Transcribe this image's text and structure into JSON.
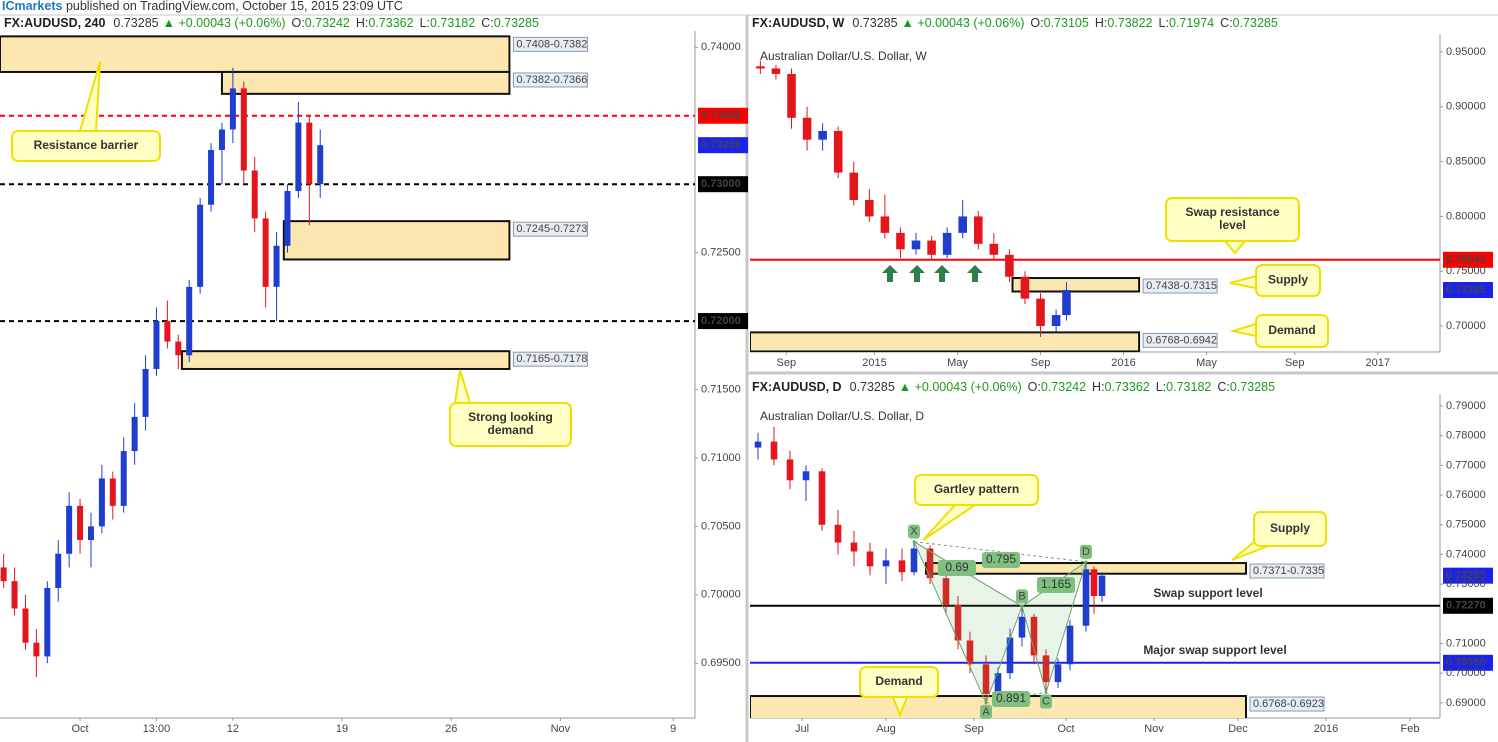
{
  "header": {
    "brand": "ICmarkets",
    "text": "published on TradingView.com, October 15, 2015 23:09 UTC"
  },
  "chart_data": [
    {
      "type": "candlestick",
      "symbol": "FX:AUDUSD, 240",
      "last": "0.73285",
      "change": "▲ +0.00043 (+0.06%)",
      "ohlc": [
        {
          "label": "O:",
          "value": "0.73242"
        },
        {
          "label": "H:",
          "value": "0.73362"
        },
        {
          "label": "L:",
          "value": "0.73182"
        },
        {
          "label": "C:",
          "value": "0.73285"
        }
      ],
      "watermark": "Australian Dollar/U.S. Dollar, 240",
      "up_color": "#1f3ecf",
      "down_color": "#e3161d",
      "xlim": [
        0,
        191
      ],
      "xticks": [
        {
          "value": 22,
          "label": "Oct"
        },
        {
          "value": 43,
          "label": "13:00"
        },
        {
          "value": 64,
          "label": "12"
        },
        {
          "value": 94,
          "label": "19"
        },
        {
          "value": 124,
          "label": "26"
        },
        {
          "value": 154,
          "label": "Nov"
        },
        {
          "value": 185,
          "label": "9"
        }
      ],
      "ylim": [
        0.691,
        0.7409
      ],
      "yticks": [
        {
          "value": 0.74,
          "label": "0.74000"
        },
        {
          "value": 0.725,
          "label": "0.72500"
        },
        {
          "value": 0.715,
          "label": "0.71500"
        },
        {
          "value": 0.71,
          "label": "0.71000"
        },
        {
          "value": 0.705,
          "label": "0.70500"
        },
        {
          "value": 0.7,
          "label": "0.70000"
        },
        {
          "value": 0.695,
          "label": "0.69500"
        }
      ],
      "candles": [
        [
          1,
          0.702,
          0.703,
          0.7005,
          0.701
        ],
        [
          4,
          0.701,
          0.702,
          0.6985,
          0.699
        ],
        [
          7,
          0.699,
          0.7,
          0.696,
          0.6965
        ],
        [
          10,
          0.6965,
          0.6975,
          0.694,
          0.6955
        ],
        [
          13,
          0.6955,
          0.701,
          0.695,
          0.7005
        ],
        [
          16,
          0.7005,
          0.704,
          0.6995,
          0.703
        ],
        [
          19,
          0.703,
          0.7075,
          0.702,
          0.7065
        ],
        [
          22,
          0.7065,
          0.707,
          0.703,
          0.704
        ],
        [
          25,
          0.704,
          0.706,
          0.702,
          0.705
        ],
        [
          28,
          0.705,
          0.7095,
          0.7045,
          0.7085
        ],
        [
          31,
          0.7085,
          0.709,
          0.7055,
          0.7065
        ],
        [
          34,
          0.7065,
          0.7115,
          0.706,
          0.7105
        ],
        [
          37,
          0.7105,
          0.714,
          0.7095,
          0.713
        ],
        [
          40,
          0.713,
          0.7175,
          0.712,
          0.7165
        ],
        [
          43,
          0.7165,
          0.721,
          0.716,
          0.72
        ],
        [
          46,
          0.72,
          0.7215,
          0.718,
          0.7185
        ],
        [
          49,
          0.7185,
          0.719,
          0.7165,
          0.7175
        ],
        [
          52,
          0.7175,
          0.723,
          0.717,
          0.7225
        ],
        [
          55,
          0.7225,
          0.729,
          0.722,
          0.7285
        ],
        [
          58,
          0.7285,
          0.733,
          0.728,
          0.7325
        ],
        [
          61,
          0.7325,
          0.7345,
          0.73,
          0.734
        ],
        [
          64,
          0.734,
          0.7385,
          0.733,
          0.737
        ],
        [
          67,
          0.737,
          0.7375,
          0.73,
          0.731
        ],
        [
          70,
          0.731,
          0.732,
          0.7265,
          0.7275
        ],
        [
          73,
          0.7275,
          0.728,
          0.721,
          0.7225
        ],
        [
          76,
          0.7225,
          0.7265,
          0.72,
          0.7255
        ],
        [
          79,
          0.7255,
          0.73,
          0.725,
          0.7295
        ],
        [
          82,
          0.7295,
          0.736,
          0.729,
          0.7345
        ],
        [
          85,
          0.7345,
          0.735,
          0.727,
          0.73
        ],
        [
          88,
          0.73,
          0.734,
          0.729,
          0.73285
        ]
      ],
      "levels": [
        {
          "value": 0.735,
          "label": "0.73500",
          "color": "#ff0000",
          "style": "dashed"
        },
        {
          "value": 0.73285,
          "label": "0.73285",
          "color": "#1a22f0",
          "style": "none"
        },
        {
          "value": 0.73,
          "label": "0.73000",
          "color": "#000000",
          "style": "dashed"
        },
        {
          "value": 0.72,
          "label": "0.72000",
          "color": "#000000",
          "style": "dashed"
        }
      ],
      "zones": [
        {
          "label": "0.7408-0.7382",
          "high": 0.7408,
          "low": 0.7382,
          "start": 0,
          "end": 140
        },
        {
          "label": "0.7382-0.7366",
          "high": 0.7382,
          "low": 0.7366,
          "start": 61,
          "end": 140
        },
        {
          "label": "0.7245-0.7273",
          "high": 0.7273,
          "low": 0.7245,
          "start": 78,
          "end": 140
        },
        {
          "label": "0.7165-0.7178",
          "high": 0.7178,
          "low": 0.7165,
          "start": 50,
          "end": 140
        }
      ],
      "annotations": [
        {
          "lines": [
            "Resistance barrier"
          ]
        },
        {
          "lines": [
            "Strong looking",
            "demand"
          ]
        }
      ]
    },
    {
      "type": "candlestick",
      "symbol": "FX:AUDUSD, W",
      "last": "0.73285",
      "change": "▲ +0.00043 (+0.06%)",
      "ohlc": [
        {
          "label": "O:",
          "value": "0.73105"
        },
        {
          "label": "H:",
          "value": "0.73822"
        },
        {
          "label": "L:",
          "value": "0.71974"
        },
        {
          "label": "C:",
          "value": "0.73285"
        }
      ],
      "watermark": "Australian Dollar/U.S. Dollar, W",
      "up_color": "#1f3ecf",
      "down_color": "#e3161d",
      "xlim": [
        0,
        133
      ],
      "xticks": [
        {
          "value": 7,
          "label": "Sep"
        },
        {
          "value": 24,
          "label": "2015"
        },
        {
          "value": 40,
          "label": "May"
        },
        {
          "value": 56,
          "label": "Sep"
        },
        {
          "value": 72,
          "label": "2016"
        },
        {
          "value": 88,
          "label": "May"
        },
        {
          "value": 105,
          "label": "Sep"
        },
        {
          "value": 121,
          "label": "2017"
        }
      ],
      "ylim": [
        0.6763,
        0.9628
      ],
      "yticks": [
        {
          "value": 0.95,
          "label": "0.95000"
        },
        {
          "value": 0.9,
          "label": "0.90000"
        },
        {
          "value": 0.85,
          "label": "0.85000"
        },
        {
          "value": 0.8,
          "label": "0.80000"
        },
        {
          "value": 0.75,
          "label": "0.75000"
        },
        {
          "value": 0.7,
          "label": "0.70000"
        }
      ],
      "candles": [
        [
          2,
          0.937,
          0.942,
          0.93,
          0.935
        ],
        [
          5,
          0.935,
          0.938,
          0.925,
          0.93
        ],
        [
          8,
          0.93,
          0.935,
          0.88,
          0.89
        ],
        [
          11,
          0.89,
          0.9,
          0.86,
          0.87
        ],
        [
          14,
          0.87,
          0.885,
          0.86,
          0.878
        ],
        [
          17,
          0.878,
          0.882,
          0.835,
          0.84
        ],
        [
          20,
          0.84,
          0.85,
          0.81,
          0.815
        ],
        [
          23,
          0.815,
          0.825,
          0.795,
          0.8
        ],
        [
          26,
          0.8,
          0.82,
          0.78,
          0.785
        ],
        [
          29,
          0.785,
          0.79,
          0.762,
          0.77
        ],
        [
          32,
          0.77,
          0.785,
          0.765,
          0.778
        ],
        [
          35,
          0.778,
          0.782,
          0.76,
          0.765
        ],
        [
          38,
          0.765,
          0.79,
          0.762,
          0.785
        ],
        [
          41,
          0.785,
          0.815,
          0.78,
          0.8
        ],
        [
          44,
          0.8,
          0.805,
          0.77,
          0.775
        ],
        [
          47,
          0.775,
          0.785,
          0.76,
          0.765
        ],
        [
          50,
          0.765,
          0.77,
          0.74,
          0.745
        ],
        [
          53,
          0.745,
          0.75,
          0.72,
          0.725
        ],
        [
          56,
          0.725,
          0.73,
          0.69,
          0.7
        ],
        [
          59,
          0.7,
          0.715,
          0.695,
          0.71
        ],
        [
          61,
          0.71,
          0.74,
          0.705,
          0.73285
        ]
      ],
      "levels": [
        {
          "value": 0.76043,
          "label": "0.76043",
          "color": "#ff0000",
          "style": "solid"
        },
        {
          "value": 0.73285,
          "label": "0.73285",
          "color": "#1a22f0",
          "style": "none"
        }
      ],
      "zones": [
        {
          "label": "0.7438-0.7315",
          "high": 0.7438,
          "low": 0.7315,
          "start": 50.6,
          "end": 75
        },
        {
          "label": "0.6768-0.6942",
          "high": 0.6942,
          "low": 0.6768,
          "start": 0,
          "end": 75
        }
      ],
      "annotations": [
        {
          "lines": [
            "Swap resistance",
            "level"
          ]
        },
        {
          "lines": [
            "Supply"
          ]
        },
        {
          "lines": [
            "Demand"
          ]
        }
      ]
    },
    {
      "type": "candlestick",
      "symbol": "FX:AUDUSD, D",
      "last": "0.73285",
      "change": "▲ +0.00043 (+0.06%)",
      "ohlc": [
        {
          "label": "O:",
          "value": "0.73242"
        },
        {
          "label": "H:",
          "value": "0.73362"
        },
        {
          "label": "L:",
          "value": "0.73182"
        },
        {
          "label": "C:",
          "value": "0.73285"
        }
      ],
      "watermark": "Australian Dollar/U.S. Dollar, D",
      "up_color": "#1f3ecf",
      "down_color": "#e3161d",
      "xlim": [
        0,
        172.5
      ],
      "xticks": [
        {
          "value": 13,
          "label": "Jul"
        },
        {
          "value": 34,
          "label": "Aug"
        },
        {
          "value": 56,
          "label": "Sep"
        },
        {
          "value": 79,
          "label": "Oct"
        },
        {
          "value": 101,
          "label": "Nov"
        },
        {
          "value": 122,
          "label": "Dec"
        },
        {
          "value": 144,
          "label": "2016"
        },
        {
          "value": 165,
          "label": "Feb"
        }
      ],
      "ylim": [
        0.6849,
        0.7927
      ],
      "yticks": [
        {
          "value": 0.79,
          "label": "0.79000"
        },
        {
          "value": 0.78,
          "label": "0.78000"
        },
        {
          "value": 0.77,
          "label": "0.77000"
        },
        {
          "value": 0.76,
          "label": "0.76000"
        },
        {
          "value": 0.75,
          "label": "0.75000"
        },
        {
          "value": 0.74,
          "label": "0.74000"
        },
        {
          "value": 0.73,
          "label": "0.73000"
        },
        {
          "value": 0.71,
          "label": "0.71000"
        },
        {
          "value": 0.7,
          "label": "0.70000"
        },
        {
          "value": 0.69,
          "label": "0.69000"
        }
      ],
      "candles": [
        [
          2,
          0.776,
          0.781,
          0.772,
          0.778
        ],
        [
          6,
          0.778,
          0.783,
          0.77,
          0.772
        ],
        [
          10,
          0.772,
          0.775,
          0.762,
          0.765
        ],
        [
          14,
          0.765,
          0.77,
          0.758,
          0.768
        ],
        [
          18,
          0.768,
          0.769,
          0.748,
          0.75
        ],
        [
          22,
          0.75,
          0.755,
          0.74,
          0.744
        ],
        [
          26,
          0.744,
          0.748,
          0.736,
          0.741
        ],
        [
          30,
          0.741,
          0.744,
          0.733,
          0.736
        ],
        [
          34,
          0.736,
          0.742,
          0.73,
          0.738
        ],
        [
          38,
          0.738,
          0.742,
          0.731,
          0.734
        ],
        [
          41,
          0.734,
          0.7443,
          0.733,
          0.742
        ],
        [
          45,
          0.742,
          0.743,
          0.73,
          0.732
        ],
        [
          49,
          0.732,
          0.735,
          0.72,
          0.723
        ],
        [
          52,
          0.723,
          0.726,
          0.708,
          0.711
        ],
        [
          55,
          0.711,
          0.714,
          0.7,
          0.703
        ],
        [
          59,
          0.703,
          0.706,
          0.69,
          0.693
        ],
        [
          62,
          0.693,
          0.702,
          0.691,
          0.7
        ],
        [
          65,
          0.7,
          0.715,
          0.698,
          0.712
        ],
        [
          68,
          0.712,
          0.7225,
          0.709,
          0.719
        ],
        [
          71,
          0.719,
          0.72,
          0.703,
          0.706
        ],
        [
          74,
          0.706,
          0.708,
          0.6935,
          0.697
        ],
        [
          77,
          0.697,
          0.705,
          0.695,
          0.703
        ],
        [
          80,
          0.703,
          0.718,
          0.701,
          0.716
        ],
        [
          84,
          0.716,
          0.7375,
          0.714,
          0.735
        ],
        [
          86,
          0.735,
          0.736,
          0.72,
          0.726
        ],
        [
          88,
          0.726,
          0.734,
          0.724,
          0.73285
        ]
      ],
      "levels": [
        {
          "value": 0.73285,
          "label": "0.73285",
          "color": "#1a22f0",
          "style": "none"
        },
        {
          "value": 0.7227,
          "label": "0.72270",
          "color": "#000000",
          "style": "solid"
        },
        {
          "value": 0.7035,
          "label": "0.70350",
          "color": "#1a22f0",
          "style": "solid"
        }
      ],
      "zones": [
        {
          "label": "0.7371-0.7335",
          "high": 0.7371,
          "low": 0.7335,
          "start": 44,
          "end": 124
        },
        {
          "label": "0.6768-0.6923",
          "high": 0.6923,
          "low": 0.6768,
          "start": 0,
          "end": 124
        }
      ],
      "pattern": {
        "points": [
          {
            "label": "X",
            "x": 41,
            "y": 0.7443
          },
          {
            "label": "A",
            "x": 59,
            "y": 0.69
          },
          {
            "label": "B",
            "x": 68,
            "y": 0.7225
          },
          {
            "label": "C",
            "x": 74,
            "y": 0.6935
          },
          {
            "label": "D",
            "x": 84,
            "y": 0.7375
          }
        ],
        "ratios": [
          "0.795",
          "0.69",
          "1.165",
          "0.891"
        ]
      },
      "annotations": [
        {
          "lines": [
            "Gartley pattern"
          ]
        },
        {
          "lines": [
            "Supply"
          ]
        },
        {
          "lines": [
            "Swap support level"
          ]
        },
        {
          "lines": [
            "Major swap support level"
          ]
        },
        {
          "lines": [
            "Demand"
          ]
        }
      ]
    }
  ]
}
